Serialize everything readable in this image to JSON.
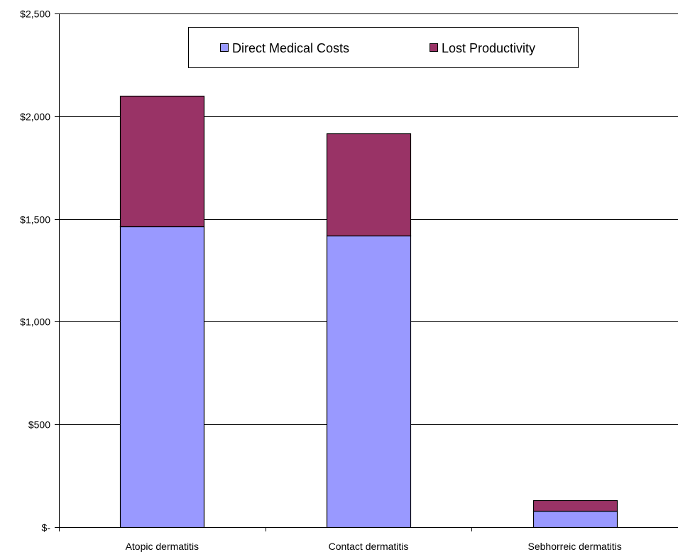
{
  "chart_data": {
    "type": "bar",
    "stacked": true,
    "categories": [
      "Atopic dermatitis",
      "Contact dermatitis",
      "Sebhorreic dermatitis"
    ],
    "series": [
      {
        "name": "Direct Medical Costs",
        "color": "#9999ff",
        "values": [
          1465,
          1418,
          80
        ]
      },
      {
        "name": "Lost Productivity",
        "color": "#993366",
        "values": [
          635,
          500,
          52
        ]
      }
    ],
    "ylim": [
      0,
      2500
    ],
    "yticks": [
      0,
      500,
      1000,
      1500,
      2000,
      2500
    ],
    "ytick_labels": [
      "$-",
      "$500",
      "$1,000",
      "$1,500",
      "$2,000",
      "$2,500"
    ],
    "grid": true,
    "legend": "top",
    "title": "",
    "xlabel": "",
    "ylabel": ""
  }
}
